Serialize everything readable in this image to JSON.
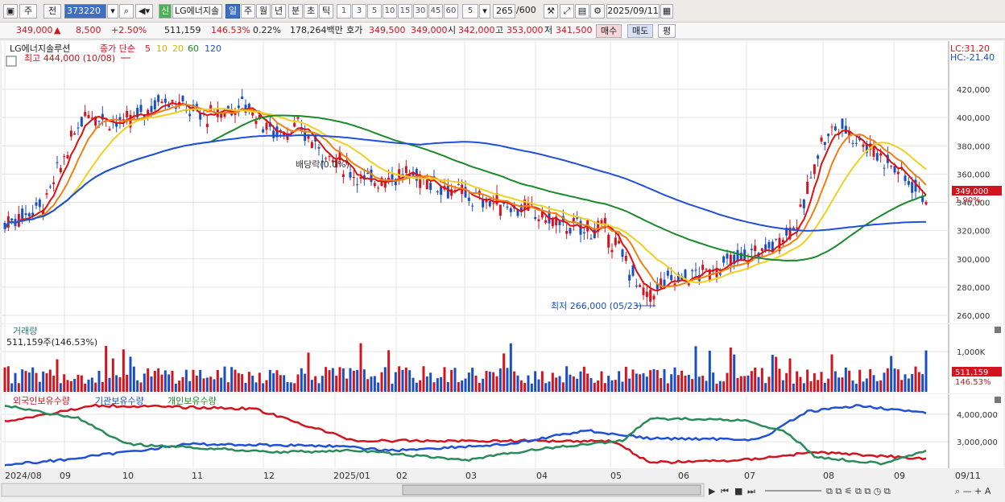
{
  "toolbar": {
    "period_main": "주",
    "prev_label": "전",
    "stock_code": "373220",
    "new_badge": "신",
    "stock_name": "LG에너지솔",
    "period_tabs": [
      "일",
      "주",
      "월",
      "년",
      "분",
      "초",
      "틱"
    ],
    "interval_buttons": [
      "1",
      "3",
      "5",
      "10",
      "15",
      "30",
      "45",
      "60"
    ],
    "interval_select": "5",
    "count_value": "265",
    "count_max": "/600",
    "date_value": "2025/09/11"
  },
  "quote": {
    "price": "349,000",
    "change": "8,500",
    "change_pct": "+2.50%",
    "volume": "511,159",
    "volume_ratio": "146.53%",
    "turnover": "0.22%",
    "amount": "178,264백만",
    "bid_label": "호가",
    "ask_price": "349,500",
    "bid_price": "349,000",
    "open_label": "시",
    "open": "342,000",
    "high_label": "고",
    "high": "353,000",
    "low_label": "저",
    "low": "341,500",
    "buy_button": "매수",
    "sell_button": "매도",
    "eval_button": "평"
  },
  "price_panel": {
    "legend_name": "LG에너지솔루션",
    "legend_desc": "종가 단순",
    "ma_labels": [
      "5",
      "10",
      "20",
      "60",
      "120"
    ],
    "high_note": "최고 444,000 (10/08)",
    "low_note": "최저 266,000 (05/23)",
    "event_note": "배당락(0.0%)",
    "lc": "LC:31.20",
    "hc": "HC:-21.40",
    "current_tag": "349,000",
    "current_pct": "1.90%",
    "y_ticks": [
      "420,000",
      "400,000",
      "380,000",
      "360,000",
      "340,000",
      "320,000",
      "300,000",
      "280,000",
      "260,000"
    ]
  },
  "volume_panel": {
    "title": "거래량",
    "value": "511,159주(146.53%)",
    "y_tick": "1,000K",
    "current_tag": "511,159",
    "current_pct": "146.53%"
  },
  "holding_panel": {
    "series_labels": [
      "외국인보유수량",
      "기관보유수량",
      "개인보유수량"
    ],
    "y_ticks": [
      "4,000,000",
      "3,000,000"
    ]
  },
  "x_axis": [
    "2024/08",
    "09",
    "10",
    "11",
    "12",
    "2025/01",
    "02",
    "03",
    "04",
    "05",
    "06",
    "07",
    "08",
    "09",
    "09/11"
  ],
  "colors": {
    "up": "#d2141e",
    "down": "#1a4fc4",
    "ma5": "#e01010",
    "ma10": "#f08010",
    "ma20": "#f0d020",
    "ma60": "#1a8a2a",
    "ma120": "#2050d8"
  }
}
